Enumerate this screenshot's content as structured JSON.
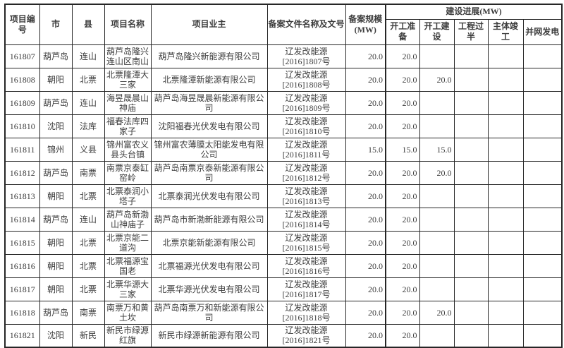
{
  "table": {
    "headers": {
      "project_id": "项目编号",
      "city": "市",
      "county": "县",
      "project_name": "项目名称",
      "owner": "项目业主",
      "filing_doc": "备案文件名称及文号",
      "filing_scale": "备案规模(MW)",
      "progress_group": "建设进展(MW)",
      "progress_cols": [
        "开工准备",
        "开工建设",
        "工程过半",
        "主体竣工",
        "并网发电"
      ]
    },
    "rows": [
      {
        "id": "161807",
        "city": "葫芦岛",
        "county": "连山",
        "name": "葫芦岛隆兴连山区南山",
        "owner": "葫芦岛隆兴新能源有限公司",
        "doc1": "辽发改能源",
        "doc2": "[2016]1807号",
        "scale": "20.0",
        "p1": "20.0",
        "p2": "",
        "p3": "",
        "p4": "",
        "p5": ""
      },
      {
        "id": "161808",
        "city": "朝阳",
        "county": "北票",
        "name": "北票隆潭大三家",
        "owner": "北票隆潭新能源有限公司",
        "doc1": "辽发改能源",
        "doc2": "[2016]1808号",
        "scale": "20.0",
        "p1": "20.0",
        "p2": "20.0",
        "p3": "",
        "p4": "",
        "p5": ""
      },
      {
        "id": "161809",
        "city": "葫芦岛",
        "county": "连山",
        "name": "海昱晟晨山神庙",
        "owner": "葫芦岛海昱晟晨新能源有限公司",
        "doc1": "辽发改能源",
        "doc2": "[2016]1809号",
        "scale": "20.0",
        "p1": "20.0",
        "p2": "",
        "p3": "",
        "p4": "",
        "p5": ""
      },
      {
        "id": "161810",
        "city": "沈阳",
        "county": "法库",
        "name": "福春法库四家子",
        "owner": "沈阳福春光伏发电有限公司",
        "doc1": "辽发改能源",
        "doc2": "[2016]1810号",
        "scale": "20.0",
        "p1": "20.0",
        "p2": "",
        "p3": "",
        "p4": "",
        "p5": ""
      },
      {
        "id": "161811",
        "city": "锦州",
        "county": "义县",
        "name": "锦州富农义县头台镇",
        "owner": "锦州富农薄膜太阳能发电有限公司",
        "doc1": "辽发改能源",
        "doc2": "[2016]1811号",
        "scale": "15.0",
        "p1": "15.0",
        "p2": "15.0",
        "p3": "",
        "p4": "",
        "p5": ""
      },
      {
        "id": "161812",
        "city": "葫芦岛",
        "county": "南票",
        "name": "南票京泰缸窑岭",
        "owner": "葫芦岛南票京泰新能源有限公司",
        "doc1": "辽发改能源",
        "doc2": "[2016]1812号",
        "scale": "20.0",
        "p1": "20.0",
        "p2": "20.0",
        "p3": "",
        "p4": "",
        "p5": ""
      },
      {
        "id": "161813",
        "city": "朝阳",
        "county": "北票",
        "name": "北票泰润小塔子",
        "owner": "北票泰润光伏发电有限公司",
        "doc1": "辽发改能源",
        "doc2": "[2016]1813号",
        "scale": "20.0",
        "p1": "20.0",
        "p2": "",
        "p3": "",
        "p4": "",
        "p5": ""
      },
      {
        "id": "161814",
        "city": "葫芦岛",
        "county": "连山",
        "name": "葫芦岛新渤山神庙子",
        "owner": "葫芦岛市新渤新能源有限公司",
        "doc1": "辽发改能源",
        "doc2": "[2016]1814号",
        "scale": "20.0",
        "p1": "20.0",
        "p2": "",
        "p3": "",
        "p4": "",
        "p5": ""
      },
      {
        "id": "161815",
        "city": "朝阳",
        "county": "北票",
        "name": "北票京能二道沟",
        "owner": "北票京能新能源有限公司",
        "doc1": "辽发改能源",
        "doc2": "[2016]1815号",
        "scale": "20.0",
        "p1": "20.0",
        "p2": "",
        "p3": "",
        "p4": "",
        "p5": ""
      },
      {
        "id": "161816",
        "city": "朝阳",
        "county": "北票",
        "name": "北票福源宝国老",
        "owner": "北票福源光伏发电有限公司",
        "doc1": "辽发改能源",
        "doc2": "[2016]1816号",
        "scale": "20.0",
        "p1": "20.0",
        "p2": "",
        "p3": "",
        "p4": "",
        "p5": ""
      },
      {
        "id": "161817",
        "city": "朝阳",
        "county": "北票",
        "name": "北票华源大三家",
        "owner": "北票华源光伏发电有限公司",
        "doc1": "辽发改能源",
        "doc2": "[2016]1817号",
        "scale": "20.0",
        "p1": "20.0",
        "p2": "",
        "p3": "",
        "p4": "",
        "p5": ""
      },
      {
        "id": "161818",
        "city": "葫芦岛",
        "county": "南票",
        "name": "南票万和黄土坎",
        "owner": "葫芦岛南票万和新能源有限公司",
        "doc1": "辽发改能源",
        "doc2": "[2016]1818号",
        "scale": "20.0",
        "p1": "20.0",
        "p2": "20.0",
        "p3": "",
        "p4": "",
        "p5": ""
      },
      {
        "id": "161821",
        "city": "沈阳",
        "county": "新民",
        "name": "新民市绿源红旗",
        "owner": "新民市绿源新能源有限公司",
        "doc1": "辽发改能源",
        "doc2": "[2016]1821号",
        "scale": "20.0",
        "p1": "20.0",
        "p2": "",
        "p3": "",
        "p4": "",
        "p5": ""
      }
    ]
  }
}
